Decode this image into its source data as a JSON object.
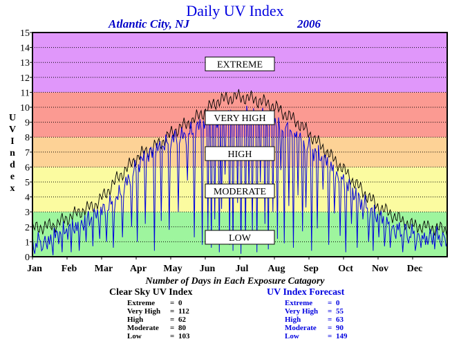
{
  "header": {
    "title": "Daily UV Index",
    "location": "Atlantic City, NJ",
    "year": "2006"
  },
  "y_axis_letters": [
    "U",
    "V",
    "",
    "I",
    "n",
    "d",
    "e",
    "x"
  ],
  "chart_data": {
    "type": "line",
    "title": "Daily UV Index",
    "ylabel": "UV Index",
    "xlabel": "",
    "ylim": [
      0,
      15
    ],
    "yticks": [
      0,
      1,
      2,
      3,
      4,
      5,
      6,
      7,
      8,
      9,
      10,
      11,
      12,
      13,
      14,
      15
    ],
    "months": [
      "Jan",
      "Feb",
      "Mar",
      "Apr",
      "May",
      "Jun",
      "Jul",
      "Aug",
      "Sep",
      "Oct",
      "Nov",
      "Dec"
    ],
    "xlim": [
      1,
      365
    ],
    "grid": true,
    "bands": [
      {
        "label": "LOW",
        "from": 0,
        "to": 3,
        "color": "#9ef59e",
        "label_at": 1.3
      },
      {
        "label": "MODERATE",
        "from": 3,
        "to": 6,
        "color": "#fbfba0",
        "label_at": 4.4
      },
      {
        "label": "HIGH",
        "from": 6,
        "to": 8,
        "color": "#fdd296",
        "label_at": 6.9
      },
      {
        "label": "VERY HIGH",
        "from": 8,
        "to": 11,
        "color": "#fb9a92",
        "label_at": 9.3
      },
      {
        "label": "EXTREME",
        "from": 11,
        "to": 15,
        "color": "#e097fa",
        "label_at": 12.9
      }
    ],
    "series": [
      {
        "name": "Clear Sky UV Index",
        "color": "#000000",
        "points": [
          [
            1,
            1.9
          ],
          [
            10,
            2.0
          ],
          [
            20,
            2.1
          ],
          [
            32,
            2.6
          ],
          [
            45,
            3.1
          ],
          [
            55,
            3.4
          ],
          [
            65,
            4.2
          ],
          [
            75,
            5.2
          ],
          [
            85,
            6.0
          ],
          [
            95,
            6.8
          ],
          [
            105,
            7.2
          ],
          [
            115,
            7.7
          ],
          [
            125,
            8.4
          ],
          [
            135,
            8.8
          ],
          [
            145,
            9.3
          ],
          [
            155,
            9.9
          ],
          [
            163,
            10.4
          ],
          [
            172,
            10.6
          ],
          [
            182,
            10.7
          ],
          [
            192,
            10.6
          ],
          [
            202,
            10.4
          ],
          [
            212,
            10.1
          ],
          [
            222,
            9.6
          ],
          [
            232,
            9.1
          ],
          [
            242,
            8.4
          ],
          [
            252,
            7.6
          ],
          [
            262,
            6.8
          ],
          [
            272,
            6.0
          ],
          [
            282,
            5.1
          ],
          [
            292,
            4.3
          ],
          [
            305,
            3.3
          ],
          [
            315,
            2.9
          ],
          [
            325,
            2.4
          ],
          [
            335,
            2.1
          ],
          [
            345,
            2.0
          ],
          [
            355,
            1.9
          ],
          [
            365,
            1.8
          ]
        ]
      },
      {
        "name": "UV Index Forecast",
        "color": "#0000dd",
        "points": [
          [
            1,
            1.0
          ],
          [
            15,
            1.2
          ],
          [
            32,
            1.8
          ],
          [
            45,
            2.3
          ],
          [
            60,
            2.9
          ],
          [
            75,
            3.9
          ],
          [
            85,
            5.1
          ],
          [
            95,
            6.3
          ],
          [
            105,
            6.9
          ],
          [
            115,
            7.4
          ],
          [
            125,
            7.9
          ],
          [
            135,
            8.1
          ],
          [
            145,
            8.6
          ],
          [
            155,
            9.0
          ],
          [
            165,
            9.2
          ],
          [
            175,
            9.4
          ],
          [
            185,
            9.5
          ],
          [
            195,
            9.4
          ],
          [
            205,
            9.3
          ],
          [
            215,
            9.0
          ],
          [
            225,
            8.6
          ],
          [
            235,
            8.0
          ],
          [
            245,
            7.3
          ],
          [
            255,
            6.6
          ],
          [
            265,
            5.9
          ],
          [
            275,
            5.0
          ],
          [
            285,
            4.1
          ],
          [
            295,
            3.3
          ],
          [
            305,
            2.6
          ],
          [
            315,
            2.2
          ],
          [
            325,
            1.8
          ],
          [
            335,
            1.6
          ],
          [
            345,
            1.4
          ],
          [
            355,
            1.4
          ],
          [
            365,
            1.3
          ]
        ],
        "dips": [
          [
            3,
            0.2
          ],
          [
            9,
            0.4
          ],
          [
            14,
            0.5
          ],
          [
            19,
            0.1
          ],
          [
            27,
            0.3
          ],
          [
            35,
            0.3
          ],
          [
            42,
            0.4
          ],
          [
            48,
            1.0
          ],
          [
            54,
            0.7
          ],
          [
            60,
            1.2
          ],
          [
            66,
            1.0
          ],
          [
            72,
            0.6
          ],
          [
            80,
            1.3
          ],
          [
            88,
            2.0
          ],
          [
            93,
            1.0
          ],
          [
            100,
            2.2
          ],
          [
            108,
            0.4
          ],
          [
            114,
            2.4
          ],
          [
            121,
            1.8
          ],
          [
            129,
            3.0
          ],
          [
            137,
            5.1
          ],
          [
            143,
            1.3
          ],
          [
            150,
            0.8
          ],
          [
            155,
            1.8
          ],
          [
            158,
            0.6
          ],
          [
            161,
            2.5
          ],
          [
            165,
            0.3
          ],
          [
            167,
            3.2
          ],
          [
            170,
            5.5
          ],
          [
            174,
            0.8
          ],
          [
            177,
            0.4
          ],
          [
            181,
            3.6
          ],
          [
            184,
            0.2
          ],
          [
            188,
            0.9
          ],
          [
            191,
            4.2
          ],
          [
            194,
            1.6
          ],
          [
            198,
            0.3
          ],
          [
            201,
            5.0
          ],
          [
            205,
            2.2
          ],
          [
            208,
            0.5
          ],
          [
            212,
            3.0
          ],
          [
            216,
            1.2
          ],
          [
            219,
            5.8
          ],
          [
            222,
            0.9
          ],
          [
            226,
            3.4
          ],
          [
            230,
            0.6
          ],
          [
            234,
            4.1
          ],
          [
            238,
            1.7
          ],
          [
            241,
            3.3
          ],
          [
            246,
            0.4
          ],
          [
            251,
            1.9
          ],
          [
            256,
            4.5
          ],
          [
            261,
            0.8
          ],
          [
            266,
            2.9
          ],
          [
            271,
            1.4
          ],
          [
            276,
            0.3
          ],
          [
            281,
            2.2
          ],
          [
            286,
            0.6
          ],
          [
            291,
            2.5
          ],
          [
            296,
            1.0
          ],
          [
            300,
            0.4
          ],
          [
            305,
            1.3
          ],
          [
            310,
            0.7
          ],
          [
            315,
            0.6
          ],
          [
            320,
            1.2
          ],
          [
            326,
            0.3
          ],
          [
            331,
            0.9
          ],
          [
            337,
            0.4
          ],
          [
            342,
            0.6
          ],
          [
            348,
            0.8
          ],
          [
            354,
            0.5
          ],
          [
            359,
            0.9
          ],
          [
            364,
            0.7
          ]
        ]
      }
    ]
  },
  "counts": {
    "title": "Number of Days in Each Exposure Catagory",
    "clear_sky": {
      "label": "Clear Sky UV Index",
      "rows": [
        {
          "category": "Extreme",
          "value": "0"
        },
        {
          "category": "Very High",
          "value": "112"
        },
        {
          "category": "High",
          "value": "62"
        },
        {
          "category": "Moderate",
          "value": "80"
        },
        {
          "category": "Low",
          "value": "103"
        }
      ]
    },
    "forecast": {
      "label": "UV Index Forecast",
      "rows": [
        {
          "category": "Extreme",
          "value": "0"
        },
        {
          "category": "Very High",
          "value": "55"
        },
        {
          "category": "High",
          "value": "63"
        },
        {
          "category": "Moderate",
          "value": "90"
        },
        {
          "category": "Low",
          "value": "149"
        }
      ]
    }
  }
}
